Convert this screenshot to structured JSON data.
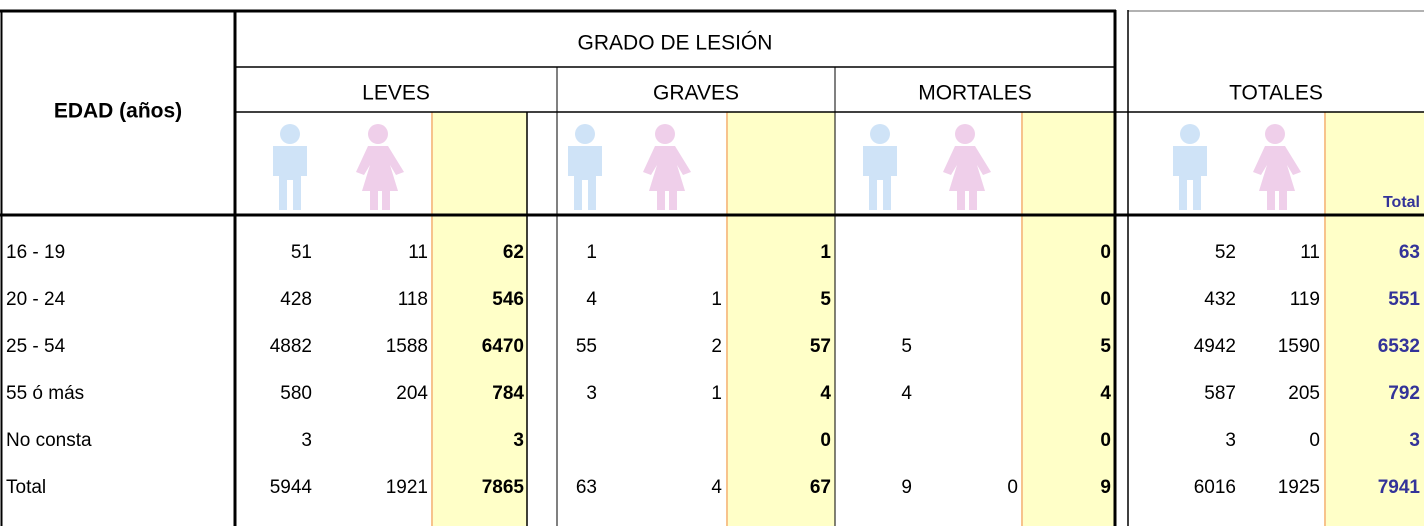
{
  "header": {
    "title_edad": "EDAD (años)",
    "grado": "GRADO DE LESIÓN",
    "groups": [
      "LEVES",
      "GRAVES",
      "MORTALES",
      "TOTALES"
    ],
    "total_label": "Total"
  },
  "table": {
    "rows": [
      {
        "label": "16 - 19",
        "cells": [
          51,
          11,
          62,
          1,
          null,
          1,
          null,
          null,
          0,
          52,
          11,
          63
        ]
      },
      {
        "label": "20 - 24",
        "cells": [
          428,
          118,
          546,
          4,
          1,
          5,
          null,
          null,
          0,
          432,
          119,
          551
        ]
      },
      {
        "label": "25 - 54",
        "cells": [
          4882,
          1588,
          6470,
          55,
          2,
          57,
          5,
          null,
          5,
          4942,
          1590,
          6532
        ]
      },
      {
        "label": "55 ó más",
        "cells": [
          580,
          204,
          784,
          3,
          1,
          4,
          4,
          null,
          4,
          587,
          205,
          792
        ]
      },
      {
        "label": "No consta",
        "cells": [
          3,
          null,
          3,
          null,
          null,
          0,
          null,
          null,
          0,
          3,
          0,
          3
        ]
      },
      {
        "label": "Total",
        "cells": [
          5944,
          1921,
          7865,
          63,
          4,
          67,
          9,
          0,
          9,
          6016,
          1925,
          7941
        ]
      }
    ]
  }
}
